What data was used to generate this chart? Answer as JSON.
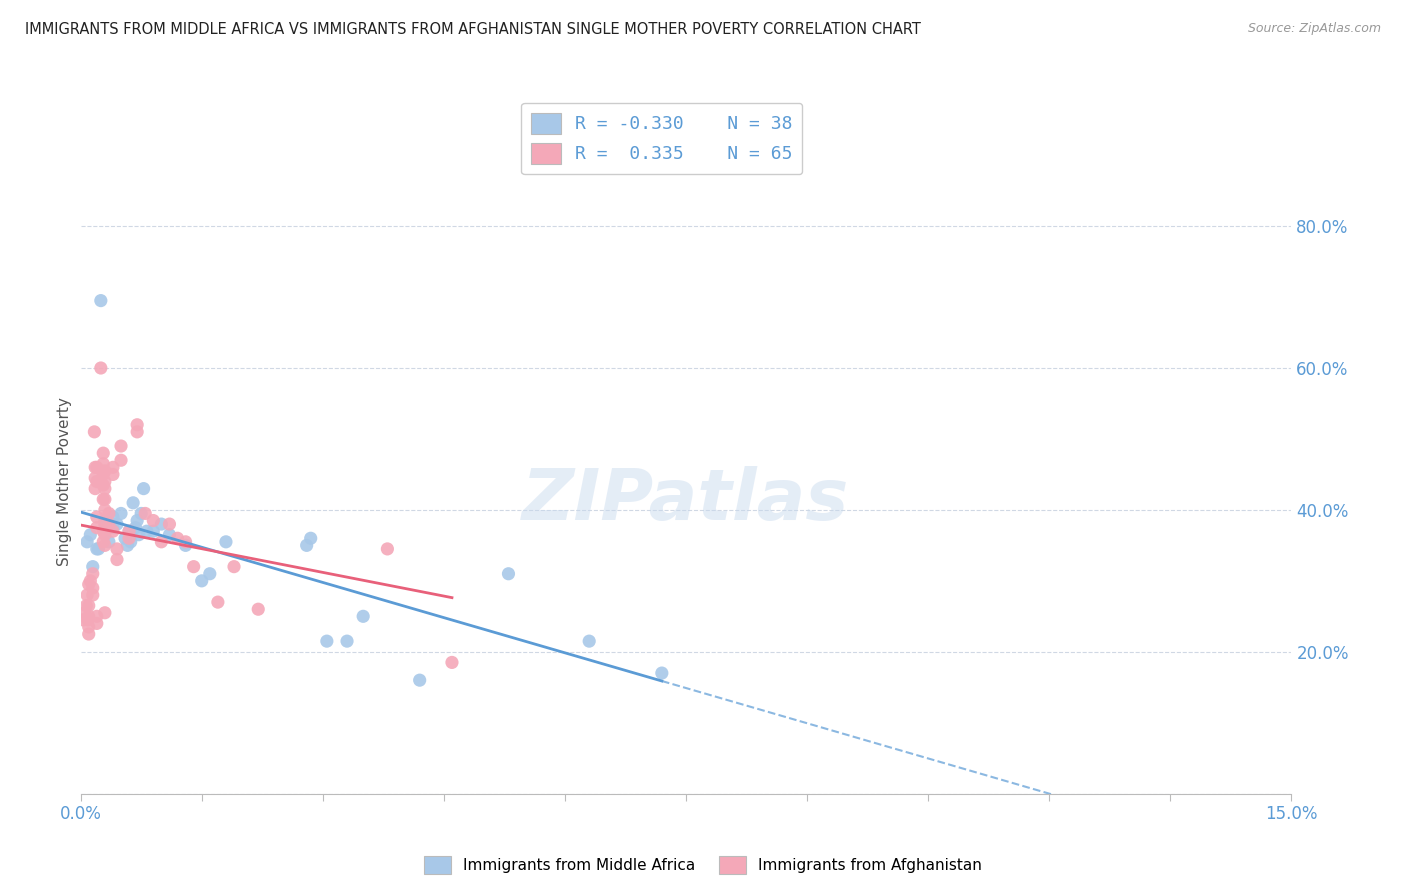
{
  "title": "IMMIGRANTS FROM MIDDLE AFRICA VS IMMIGRANTS FROM AFGHANISTAN SINGLE MOTHER POVERTY CORRELATION CHART",
  "source": "Source: ZipAtlas.com",
  "ylabel": "Single Mother Poverty",
  "watermark": "ZIPatlas",
  "blue_color": "#a8c8e8",
  "pink_color": "#f4a8b8",
  "blue_line_color": "#5b9bd5",
  "pink_line_color": "#e8607a",
  "blue_r": -0.33,
  "blue_n": 38,
  "pink_r": 0.335,
  "pink_n": 65,
  "xlim": [
    0.0,
    0.15
  ],
  "ylim": [
    0.0,
    0.88
  ],
  "blue_scatter": [
    [
      0.0008,
      0.355
    ],
    [
      0.0012,
      0.365
    ],
    [
      0.0015,
      0.32
    ],
    [
      0.002,
      0.345
    ],
    [
      0.0022,
      0.345
    ],
    [
      0.0025,
      0.695
    ],
    [
      0.003,
      0.385
    ],
    [
      0.0035,
      0.355
    ],
    [
      0.004,
      0.39
    ],
    [
      0.004,
      0.375
    ],
    [
      0.0045,
      0.38
    ],
    [
      0.005,
      0.395
    ],
    [
      0.0055,
      0.36
    ],
    [
      0.0058,
      0.35
    ],
    [
      0.006,
      0.37
    ],
    [
      0.0062,
      0.355
    ],
    [
      0.0065,
      0.41
    ],
    [
      0.0068,
      0.375
    ],
    [
      0.007,
      0.385
    ],
    [
      0.0072,
      0.365
    ],
    [
      0.0075,
      0.395
    ],
    [
      0.0078,
      0.43
    ],
    [
      0.0082,
      0.37
    ],
    [
      0.009,
      0.37
    ],
    [
      0.01,
      0.38
    ],
    [
      0.011,
      0.365
    ],
    [
      0.013,
      0.35
    ],
    [
      0.015,
      0.3
    ],
    [
      0.016,
      0.31
    ],
    [
      0.018,
      0.355
    ],
    [
      0.028,
      0.35
    ],
    [
      0.0285,
      0.36
    ],
    [
      0.0305,
      0.215
    ],
    [
      0.033,
      0.215
    ],
    [
      0.035,
      0.25
    ],
    [
      0.042,
      0.16
    ],
    [
      0.053,
      0.31
    ],
    [
      0.063,
      0.215
    ],
    [
      0.072,
      0.17
    ]
  ],
  "pink_scatter": [
    [
      0.0003,
      0.245
    ],
    [
      0.0005,
      0.255
    ],
    [
      0.0007,
      0.265
    ],
    [
      0.0008,
      0.28
    ],
    [
      0.0009,
      0.245
    ],
    [
      0.001,
      0.295
    ],
    [
      0.001,
      0.265
    ],
    [
      0.001,
      0.25
    ],
    [
      0.001,
      0.235
    ],
    [
      0.001,
      0.225
    ],
    [
      0.0012,
      0.3
    ],
    [
      0.0015,
      0.31
    ],
    [
      0.0015,
      0.29
    ],
    [
      0.0015,
      0.28
    ],
    [
      0.0017,
      0.51
    ],
    [
      0.0018,
      0.46
    ],
    [
      0.0018,
      0.445
    ],
    [
      0.0018,
      0.43
    ],
    [
      0.002,
      0.46
    ],
    [
      0.002,
      0.44
    ],
    [
      0.002,
      0.39
    ],
    [
      0.002,
      0.375
    ],
    [
      0.002,
      0.25
    ],
    [
      0.002,
      0.24
    ],
    [
      0.0025,
      0.6
    ],
    [
      0.0028,
      0.48
    ],
    [
      0.0028,
      0.465
    ],
    [
      0.0028,
      0.45
    ],
    [
      0.0028,
      0.435
    ],
    [
      0.0028,
      0.415
    ],
    [
      0.0028,
      0.37
    ],
    [
      0.0028,
      0.355
    ],
    [
      0.003,
      0.455
    ],
    [
      0.003,
      0.44
    ],
    [
      0.003,
      0.43
    ],
    [
      0.003,
      0.415
    ],
    [
      0.003,
      0.4
    ],
    [
      0.003,
      0.38
    ],
    [
      0.003,
      0.365
    ],
    [
      0.003,
      0.35
    ],
    [
      0.003,
      0.255
    ],
    [
      0.0035,
      0.38
    ],
    [
      0.0035,
      0.395
    ],
    [
      0.004,
      0.46
    ],
    [
      0.004,
      0.45
    ],
    [
      0.004,
      0.37
    ],
    [
      0.0045,
      0.345
    ],
    [
      0.0045,
      0.33
    ],
    [
      0.005,
      0.49
    ],
    [
      0.005,
      0.47
    ],
    [
      0.006,
      0.37
    ],
    [
      0.006,
      0.36
    ],
    [
      0.007,
      0.52
    ],
    [
      0.007,
      0.51
    ],
    [
      0.008,
      0.395
    ],
    [
      0.009,
      0.385
    ],
    [
      0.01,
      0.355
    ],
    [
      0.011,
      0.38
    ],
    [
      0.012,
      0.36
    ],
    [
      0.013,
      0.355
    ],
    [
      0.014,
      0.32
    ],
    [
      0.017,
      0.27
    ],
    [
      0.019,
      0.32
    ],
    [
      0.022,
      0.26
    ],
    [
      0.038,
      0.345
    ],
    [
      0.046,
      0.185
    ]
  ]
}
